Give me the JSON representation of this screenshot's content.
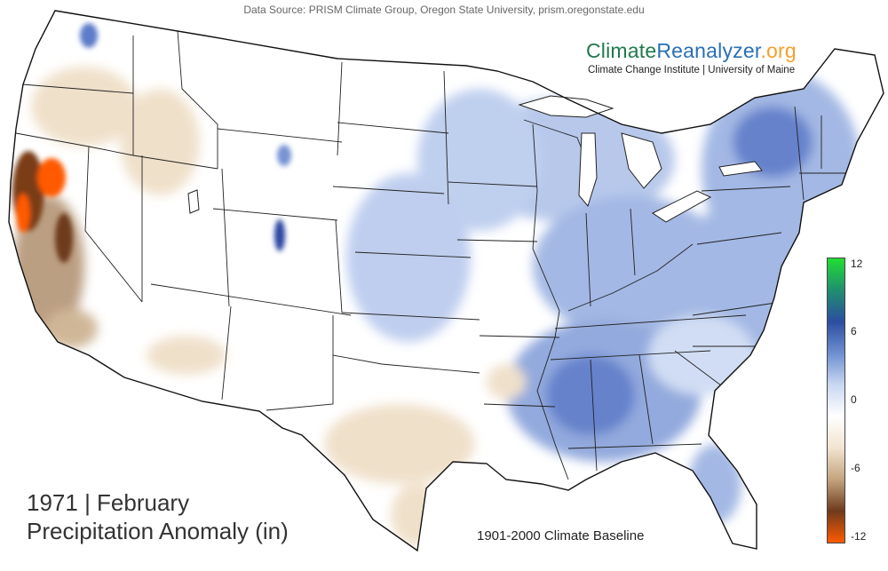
{
  "header": {
    "data_source": "Data Source: PRISM Climate Group, Oregon State University, prism.oregonstate.edu"
  },
  "brand": {
    "part1": "Climate",
    "part2": "Reanalyzer",
    "part3": ".org",
    "subtitle": "Climate Change Institute | University of Maine",
    "color_climate": "#1f7a4d",
    "color_reanalyzer": "#2a6fb5",
    "color_org": "#f5a02a"
  },
  "title": {
    "line1": "1971 | February",
    "line2": "Precipitation Anomaly (in)"
  },
  "baseline": "1901-2000 Climate Baseline",
  "colorbar": {
    "ticks": [
      "12",
      "6",
      "0",
      "-6",
      "-12"
    ],
    "gradient": [
      "#22dd33",
      "#1f8f6e",
      "#2c4ea0",
      "#6d8fd0",
      "#c9d7f2",
      "#ffffff",
      "#f2e4d0",
      "#c4a47e",
      "#6e3a1c",
      "#ff5a00"
    ]
  },
  "map": {
    "anomaly_colors": {
      "wet_light": "#cfdcf4",
      "wet_mid": "#9fb5e3",
      "wet_strong": "#5d7cc9",
      "wet_extreme": "#2b45a0",
      "dry_light": "#efdfc8",
      "dry_mid": "#b89a7c",
      "dry_strong": "#6a3a22",
      "dry_extreme": "#ff5a00"
    }
  }
}
